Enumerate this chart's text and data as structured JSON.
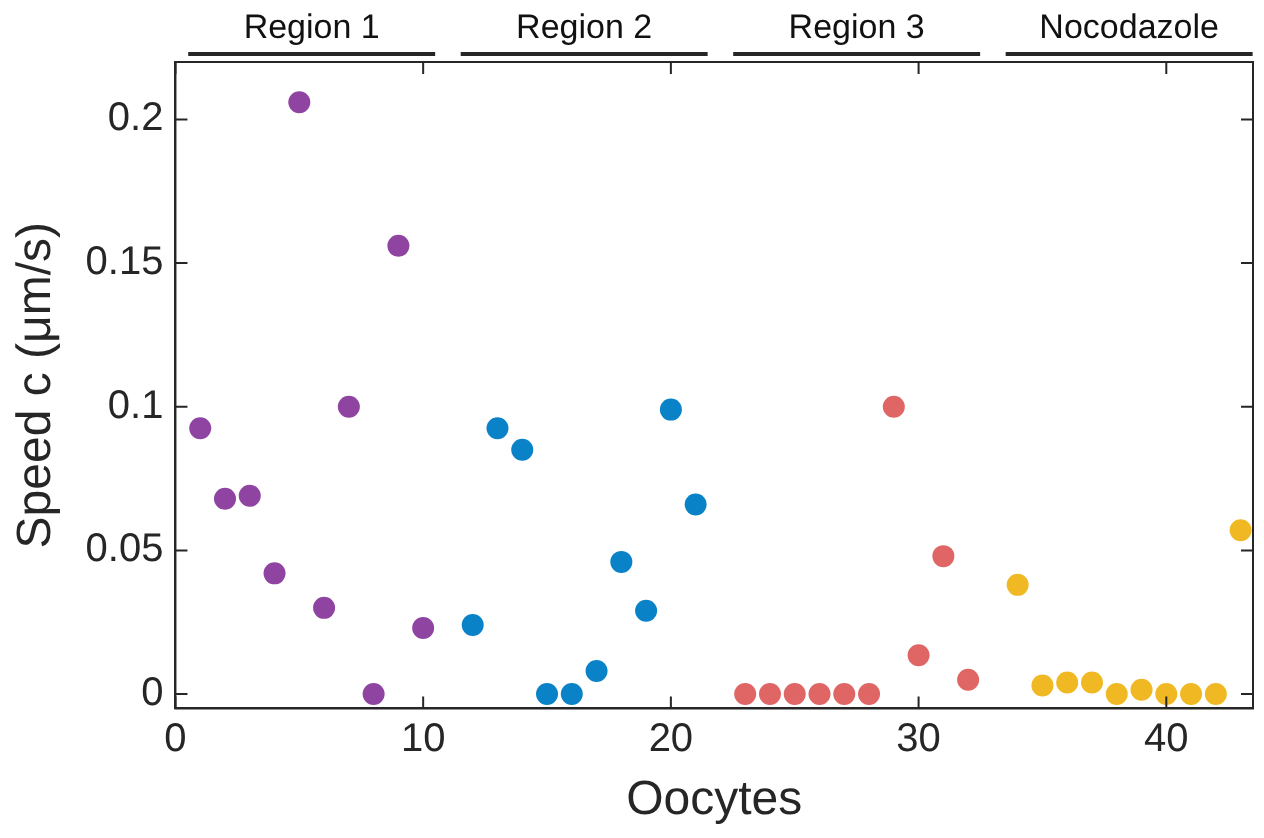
{
  "chart_data": {
    "type": "scatter",
    "xlabel": "Oocytes",
    "ylabel": "Speed c (μm/s)",
    "xlim": [
      0,
      43.5
    ],
    "xticks": [
      0,
      10,
      20,
      30,
      40
    ],
    "ylim": [
      -0.005,
      0.22
    ],
    "yticks": [
      0,
      0.05,
      0.1,
      0.15,
      0.2
    ],
    "grid": false,
    "legend": false,
    "marker": "circle",
    "annotations": [
      "Region 1",
      "Region 2",
      "Region 3",
      "Nocodazole"
    ],
    "series": [
      {
        "color": "#8e44a0",
        "x": [
          1,
          2,
          3,
          4,
          5,
          6,
          7,
          8,
          9,
          10
        ],
        "values": [
          0.0925,
          0.068,
          0.069,
          0.042,
          0.206,
          0.03,
          0.1,
          0,
          0.156,
          0.023
        ]
      },
      {
        "color": "#0a82c8",
        "x": [
          12,
          13,
          14,
          15,
          16,
          17,
          18,
          19,
          20,
          21
        ],
        "values": [
          0.024,
          0.0925,
          0.085,
          0,
          0,
          0.008,
          0.046,
          0.029,
          0.099,
          0.066
        ]
      },
      {
        "color": "#e06666",
        "x": [
          23,
          24,
          25,
          26,
          27,
          28,
          29,
          30,
          31,
          32
        ],
        "values": [
          0,
          0,
          0,
          0,
          0,
          0,
          0.1,
          0.0135,
          0.048,
          0.005
        ]
      },
      {
        "color": "#f0b923",
        "x": [
          34,
          35,
          36,
          37,
          38,
          39,
          40,
          41,
          42,
          43
        ],
        "values": [
          0.038,
          0.003,
          0.004,
          0.004,
          0,
          0.0015,
          0,
          0,
          0,
          0.057
        ]
      }
    ]
  }
}
